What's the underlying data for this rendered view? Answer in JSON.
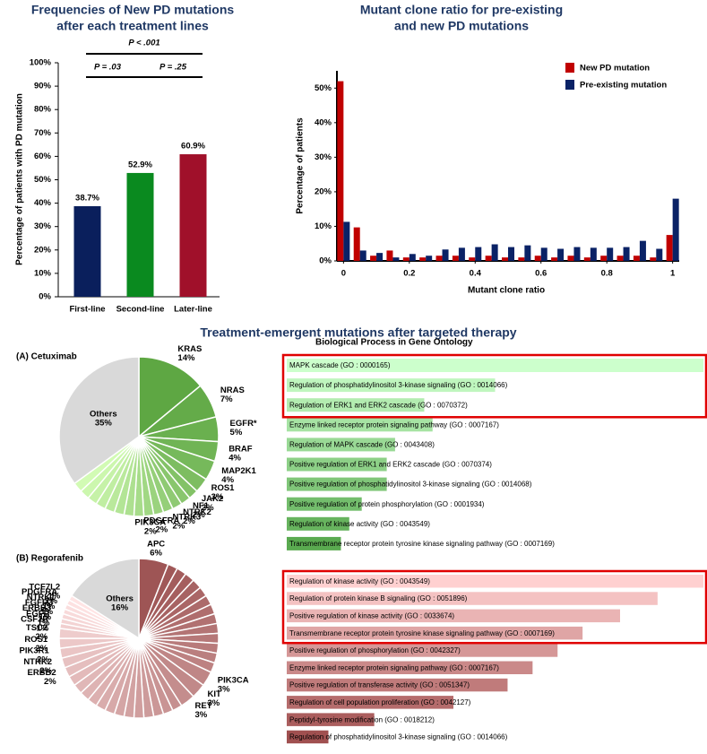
{
  "section_title": "Treatment-emergent mutations after targeted therapy",
  "chart_data": [
    {
      "type": "bar",
      "title": [
        "Frequencies of New PD mutations",
        "after each treatment lines"
      ],
      "ylabel": "Percentage of patients with PD mutation",
      "categories": [
        "First-line",
        "Second-line",
        "Later-line"
      ],
      "values": [
        38.7,
        52.9,
        60.9
      ],
      "value_labels": [
        "38.7%",
        "52.9%",
        "60.9%"
      ],
      "colors": [
        "#0a1f5c",
        "#0a8a1f",
        "#a0102a"
      ],
      "ylim": [
        0,
        100
      ],
      "yticks": [
        {
          "value": 0,
          "label": "0%"
        },
        {
          "value": 10,
          "label": "10%"
        },
        {
          "value": 20,
          "label": "20%"
        },
        {
          "value": 30,
          "label": "30%"
        },
        {
          "value": 40,
          "label": "40%"
        },
        {
          "value": 50,
          "label": "50%"
        },
        {
          "value": 60,
          "label": "60%"
        },
        {
          "value": 70,
          "label": "70%"
        },
        {
          "value": 80,
          "label": "80%"
        },
        {
          "value": 90,
          "label": "90%"
        },
        {
          "value": 100,
          "label": "100%"
        }
      ],
      "annotations": [
        "P < .001",
        "P = .03",
        "P = .25"
      ]
    },
    {
      "type": "grouped_bar",
      "title": [
        "Mutant clone ratio for pre-existing",
        "and new PD mutations"
      ],
      "xlabel": "Mutant clone ratio",
      "ylabel": "Percentage of patients",
      "x": [
        0,
        0.05,
        0.1,
        0.15,
        0.2,
        0.25,
        0.3,
        0.35,
        0.4,
        0.45,
        0.5,
        0.55,
        0.6,
        0.65,
        0.7,
        0.75,
        0.8,
        0.85,
        0.9,
        0.95,
        1
      ],
      "series": [
        {
          "name": "New PD mutation",
          "color": "#c00000",
          "values": [
            52,
            9.7,
            1.5,
            3,
            1,
            1,
            1.5,
            1.5,
            1,
            1.5,
            1,
            1,
            1.5,
            1,
            1.5,
            1,
            1.5,
            1.5,
            1.5,
            1,
            7.5
          ]
        },
        {
          "name": "Pre-existing mutation",
          "color": "#0a2266",
          "values": [
            11.3,
            3,
            2.3,
            1,
            2,
            1.5,
            3.3,
            3.8,
            4,
            4.8,
            4,
            4.5,
            3.8,
            3.5,
            4,
            3.8,
            3.8,
            4,
            5.8,
            3.5,
            18
          ]
        }
      ],
      "xlim": [
        -0.02,
        1.02
      ],
      "xticks": [
        0,
        0.2,
        0.4,
        0.6,
        0.8,
        1
      ],
      "ylim": [
        0,
        55
      ],
      "yticks": [
        {
          "value": 0,
          "label": "0%"
        },
        {
          "value": 10,
          "label": "10%"
        },
        {
          "value": 20,
          "label": "20%"
        },
        {
          "value": 30,
          "label": "30%"
        },
        {
          "value": 40,
          "label": "40%"
        },
        {
          "value": 50,
          "label": "50%"
        }
      ],
      "legend": "top-right"
    },
    {
      "type": "pie",
      "title": "(A) Cetuximab",
      "categories": [
        "KRAS",
        "NRAS",
        "EGFR*",
        "BRAF",
        "MAP2K1",
        "ROS1",
        "JAK2",
        "NF1",
        "NTRK2",
        "NTRK3",
        "PDGFRA",
        "PIK3CA",
        null,
        null,
        null,
        null,
        null,
        null,
        null,
        null,
        "Others"
      ],
      "values": [
        14,
        7,
        5,
        4,
        4,
        3,
        2,
        2,
        2,
        2,
        2,
        2,
        2,
        2,
        2,
        2,
        2,
        2,
        2,
        2,
        35
      ],
      "value_labels": [
        "14%",
        "7%",
        "5%",
        "4%",
        "4%",
        "3%",
        "2%",
        "2%",
        "2%",
        "2%",
        "2%",
        "2%",
        null,
        null,
        null,
        null,
        null,
        null,
        null,
        null,
        "35%"
      ],
      "color_start": "#5ea743",
      "color_end": "#d2fbb4",
      "other_color": "#d9d9d9"
    },
    {
      "type": "pie",
      "title": "(B) Regorafenib",
      "categories": [
        "APC",
        null,
        null,
        null,
        null,
        null,
        null,
        null,
        null,
        null,
        null,
        null,
        null,
        null,
        "PIK3CA",
        "KIT",
        "RET",
        null,
        null,
        null,
        null,
        null,
        null,
        null,
        null,
        null,
        null,
        null,
        null,
        null,
        "ERBB2",
        "NTRK2",
        "PIK3R1",
        "ROS1",
        "TSC2",
        "CSF1R",
        "EGFR",
        "ERBB3",
        "FGFR3",
        "NTRK1",
        "PDGFRA",
        "TCF7L2",
        "Others"
      ],
      "values": [
        6,
        2,
        2,
        2,
        2,
        2,
        2,
        2,
        2,
        2,
        2,
        2,
        2,
        2,
        3,
        3,
        3,
        2,
        2,
        2,
        2,
        2,
        2,
        2,
        2,
        2,
        2,
        2,
        2,
        2,
        2,
        2,
        2,
        2,
        2,
        1,
        1,
        1,
        1,
        1,
        1,
        1,
        16
      ],
      "value_labels": [
        "6%",
        null,
        null,
        null,
        null,
        null,
        null,
        null,
        null,
        null,
        null,
        null,
        null,
        null,
        "3%",
        "3%",
        "3%",
        null,
        null,
        null,
        null,
        null,
        null,
        null,
        null,
        null,
        null,
        null,
        null,
        null,
        "2%",
        "2%",
        "2%",
        "2%",
        "2%",
        "1%",
        "1%",
        "1%",
        "1%",
        "1%",
        "1%",
        "1%",
        "16%"
      ],
      "color_start": "#9e5555",
      "color_end": "#ffe4e4",
      "other_color": "#d9d9d9"
    },
    {
      "type": "hbar",
      "title": "Biological Process in Gene Ontology",
      "categories": [
        "MAPK cascade (GO : 0000165)",
        "Regulation of phosphatidylinositol 3-kinase signaling (GO : 0014066)",
        "Regulation of ERK1 and ERK2 cascade (GO : 0070372)",
        "Enzyme linked receptor protein signaling pathway (GO : 0007167)",
        "Regulation of MAPK cascade (GO : 0043408)",
        "Positive regulation of ERK1 and ERK2 cascade (GO : 0070374)",
        "Positive regulation of phosphatidylinositol 3-kinase signaling (GO : 0014068)",
        "Positive regulation of protein phosphorylation (GO : 0001934)",
        "Regulation of kinase activity (GO : 0043549)",
        "Transmembrane receptor protein tyrosine kinase signaling pathway (GO : 0007169)"
      ],
      "values": [
        100,
        50,
        33,
        35,
        26,
        24,
        24,
        18,
        15,
        13
      ],
      "xlim": [
        0,
        100
      ],
      "color_start": "#ccffcc",
      "color_end": "#5aaa50",
      "highlight_top": 3,
      "highlight_color": "#e00000"
    },
    {
      "type": "hbar",
      "categories": [
        "Regulation of kinase activity (GO : 0043549)",
        "Regulation of protein kinase B signaling (GO : 0051896)",
        "Positive regulation of kinase activity (GO : 0033674)",
        "Transmembrane receptor protein tyrosine kinase signaling pathway (GO : 0007169)",
        "Positive regulation of phosphorylation (GO : 0042327)",
        "Enzyme linked receptor protein signaling pathway (GO : 0007167)",
        "Positive regulation of transferase activity (GO : 0051347)",
        "Regulation of cell population proliferation (GO : 0042127)",
        "Peptidyl-tyrosine modification (GO : 0018212)",
        "Regulation of phosphatidylinositol 3-kinase signaling (GO : 0014066)"
      ],
      "values": [
        100,
        89,
        80,
        71,
        65,
        59,
        53,
        40,
        21,
        10
      ],
      "xlim": [
        0,
        100
      ],
      "color_start": "#ffd0d0",
      "color_end": "#a05050",
      "highlight_top": 4,
      "highlight_color": "#e00000"
    }
  ]
}
